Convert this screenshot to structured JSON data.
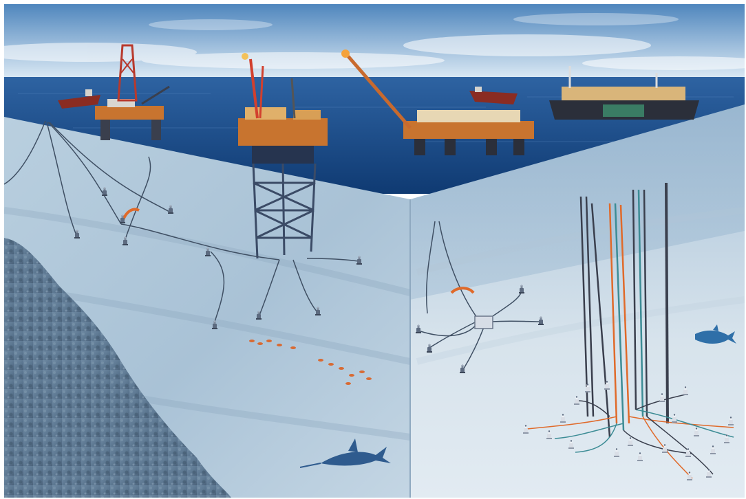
{
  "image": {
    "subject": "offshore-oil-field-cutaway",
    "palette": {
      "sky_top": "#4f86bd",
      "sky_bottom": "#dbe9f4",
      "sea_far": "#2e63a2",
      "sea_near": "#0f3a72",
      "seafloor_left": "#a9c2d6",
      "seafloor_right": "#d7e3ec",
      "water_wall": "#8fb0cb",
      "rock": "#5b7690",
      "pipeline": "#3f4f63",
      "riser_orange": "#e06a2a",
      "riser_teal": "#3c8c95",
      "structure_orange": "#c8742f",
      "hull_dark": "#2b2f3a",
      "hull_red": "#8a2c22"
    },
    "icons": [
      "drilling-rig-icon",
      "platform-icon",
      "fpso-ship-icon",
      "tanker-icon",
      "wellhead-icon",
      "fish-icon"
    ]
  }
}
